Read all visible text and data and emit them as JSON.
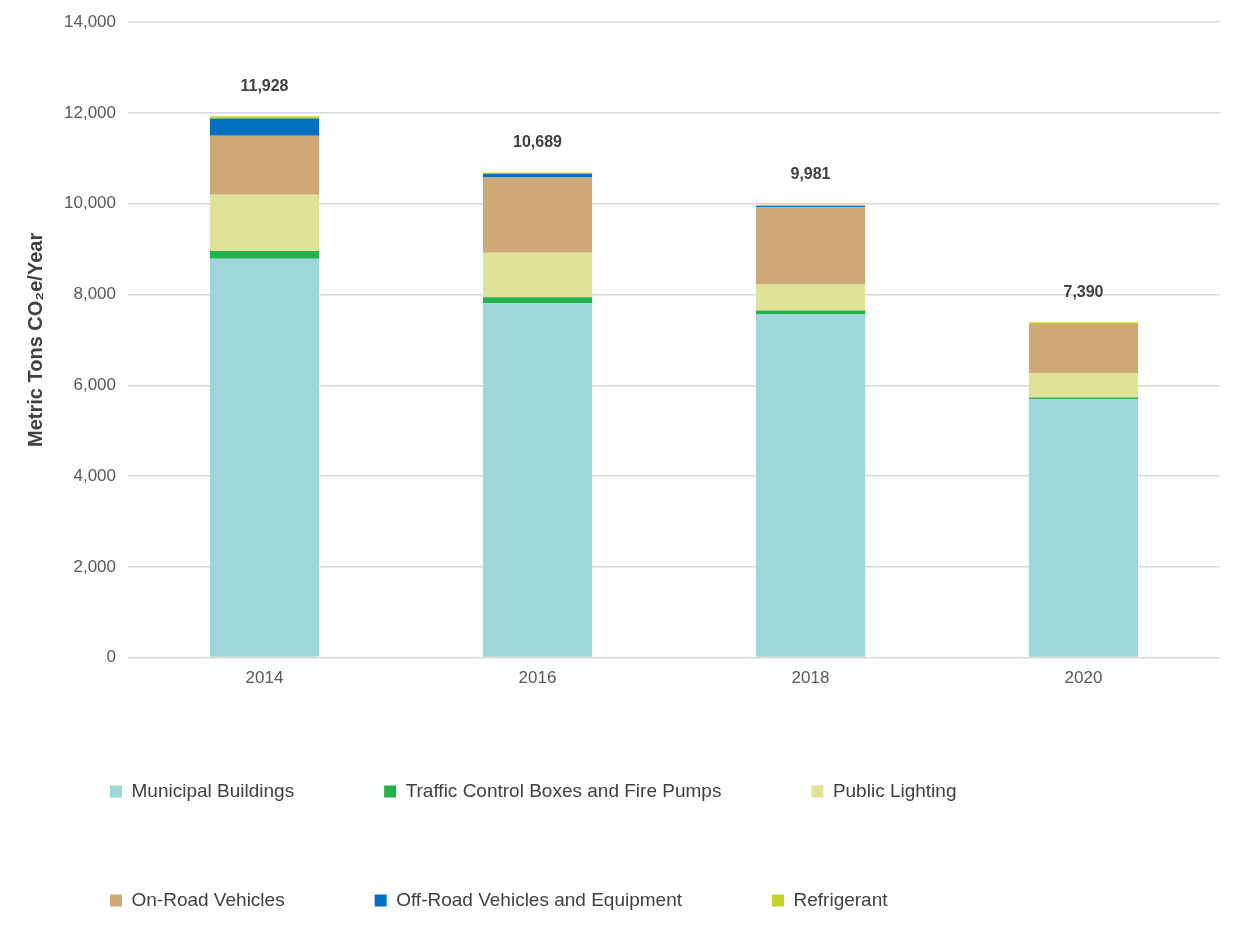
{
  "chart_data": {
    "type": "bar",
    "stacked": true,
    "ylabel": "Metric Tons CO₂e/Year",
    "categories": [
      "2014",
      "2016",
      "2018",
      "2020"
    ],
    "series": [
      {
        "name": "Municipal Buildings",
        "color": "#9dd7da",
        "values": [
          8790,
          7810,
          7570,
          5690
        ]
      },
      {
        "name": "Traffic Control Boxes and Fire Pumps",
        "color": "#22b14c",
        "values": [
          170,
          130,
          80,
          40
        ]
      },
      {
        "name": "Public Lighting",
        "color": "#e0e397",
        "values": [
          1240,
          980,
          570,
          540
        ]
      },
      {
        "name": "On-Road Vehicles",
        "color": "#cfa878",
        "values": [
          1300,
          1660,
          1700,
          1080
        ]
      },
      {
        "name": "Off-Road Vehicles and Equipment",
        "color": "#0070c0",
        "values": [
          380,
          80,
          30,
          null
        ]
      },
      {
        "name": "Refrigerant",
        "color": "#c6d42a",
        "values": [
          50,
          30,
          30,
          40
        ]
      }
    ],
    "totals": [
      "11,928",
      "10,689",
      "9,981",
      "7,390"
    ],
    "ylim": [
      0,
      14000
    ],
    "yticks": [
      0,
      {
        "value": 2000,
        "label": "2,000"
      },
      {
        "value": 4000,
        "label": "4,000"
      },
      {
        "value": 6000,
        "label": "6,000"
      },
      {
        "value": 8000,
        "label": "8,000"
      },
      {
        "value": 10000,
        "label": "10,000"
      },
      {
        "value": 12000,
        "label": "12,000"
      },
      {
        "value": 14000,
        "label": "14,000"
      }
    ],
    "grid": "y",
    "legend": "bottom"
  }
}
